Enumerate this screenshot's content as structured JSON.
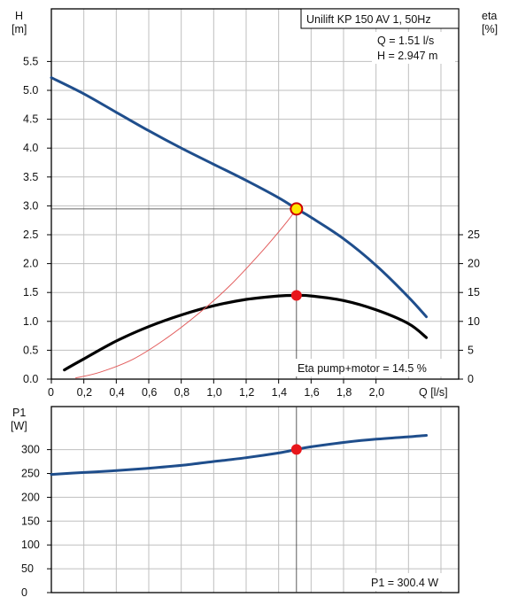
{
  "colors": {
    "head_curve": "#1f4e8c",
    "power_curve": "#1f4e8c",
    "eta_curve": "#000000",
    "eta_helper_curve": "#e25c5c",
    "operating_point_fill": "#ffe600",
    "operating_point_ring": "#cc0000",
    "marker": "#e8161b",
    "grid": "#bfbfbf"
  },
  "chart_data": [
    {
      "type": "line",
      "title": "Unilift KP 150 AV 1, 50Hz",
      "annotations": [
        "Q = 1.51 l/s",
        "H = 2.947 m",
        "Eta pump+motor = 14.5 %"
      ],
      "xlabel": "Q [l/s]",
      "ylabel_left": [
        "H",
        "[m]"
      ],
      "ylabel_right": [
        "eta",
        "[%]"
      ],
      "xlim": [
        0,
        2.4
      ],
      "ylim_left": [
        0,
        6
      ],
      "ylim_right": [
        0,
        30
      ],
      "x_tick_labels": [
        "0",
        "0,2",
        "0,4",
        "0,6",
        "0,8",
        "1,0",
        "1,2",
        "1,4",
        "1,6",
        "1,8",
        "2,0"
      ],
      "x_tick_values": [
        0,
        0.2,
        0.4,
        0.6,
        0.8,
        1.0,
        1.2,
        1.4,
        1.6,
        1.8,
        2.0
      ],
      "y_left_tick_labels": [
        "0.0",
        "0.5",
        "1.0",
        "1.5",
        "2.0",
        "2.5",
        "3.0",
        "3.5",
        "4.0",
        "4.5",
        "5.0",
        "5.5"
      ],
      "y_left_tick_values": [
        0,
        0.5,
        1.0,
        1.5,
        2.0,
        2.5,
        3.0,
        3.5,
        4.0,
        4.5,
        5.0,
        5.5
      ],
      "y_right_tick_labels": [
        "0",
        "5",
        "10",
        "15",
        "20",
        "25"
      ],
      "y_right_tick_values": [
        0,
        5,
        10,
        15,
        20,
        25
      ],
      "grid": true,
      "series": [
        {
          "key": "head",
          "axis": "left",
          "x": [
            0,
            0.2,
            0.4,
            0.6,
            0.8,
            1.0,
            1.2,
            1.4,
            1.51,
            1.6,
            1.8,
            2.0,
            2.2,
            2.31
          ],
          "y": [
            5.22,
            4.94,
            4.62,
            4.3,
            4.0,
            3.72,
            3.44,
            3.14,
            2.95,
            2.8,
            2.43,
            1.97,
            1.42,
            1.08
          ]
        },
        {
          "key": "eta",
          "axis": "right",
          "x": [
            0.08,
            0.2,
            0.4,
            0.6,
            0.8,
            1.0,
            1.2,
            1.4,
            1.51,
            1.6,
            1.8,
            2.0,
            2.2,
            2.31
          ],
          "y": [
            1.6,
            3.5,
            6.6,
            9.1,
            11.1,
            12.7,
            13.8,
            14.4,
            14.5,
            14.4,
            13.6,
            12.0,
            9.6,
            7.2
          ]
        },
        {
          "key": "eta_helper",
          "axis": "left",
          "x": [
            0.15,
            0.3,
            0.5,
            0.7,
            0.9,
            1.1,
            1.3,
            1.45,
            1.51
          ],
          "y": [
            0.02,
            0.12,
            0.34,
            0.69,
            1.12,
            1.62,
            2.22,
            2.72,
            2.947
          ]
        }
      ],
      "operating_point": {
        "x": 1.51,
        "y": 2.947
      },
      "eta_point": {
        "x": 1.51,
        "y": 14.5
      }
    },
    {
      "type": "line",
      "ylabel": [
        "P1",
        "[W]"
      ],
      "annotation": "P1 = 300.4 W",
      "xlim": [
        0,
        2.4
      ],
      "ylim": [
        0,
        350
      ],
      "y_tick_labels": [
        "0",
        "50",
        "100",
        "150",
        "200",
        "250",
        "300"
      ],
      "y_tick_values": [
        0,
        50,
        100,
        150,
        200,
        250,
        300
      ],
      "grid": true,
      "series": [
        {
          "key": "p1",
          "x": [
            0,
            0.2,
            0.4,
            0.6,
            0.8,
            1.0,
            1.2,
            1.4,
            1.51,
            1.6,
            1.8,
            2.0,
            2.2,
            2.31
          ],
          "y": [
            248,
            252,
            256,
            261,
            267,
            275,
            283,
            293,
            300.4,
            306,
            315,
            322,
            327,
            330
          ]
        }
      ],
      "point": {
        "x": 1.51,
        "y": 300.4
      }
    }
  ]
}
